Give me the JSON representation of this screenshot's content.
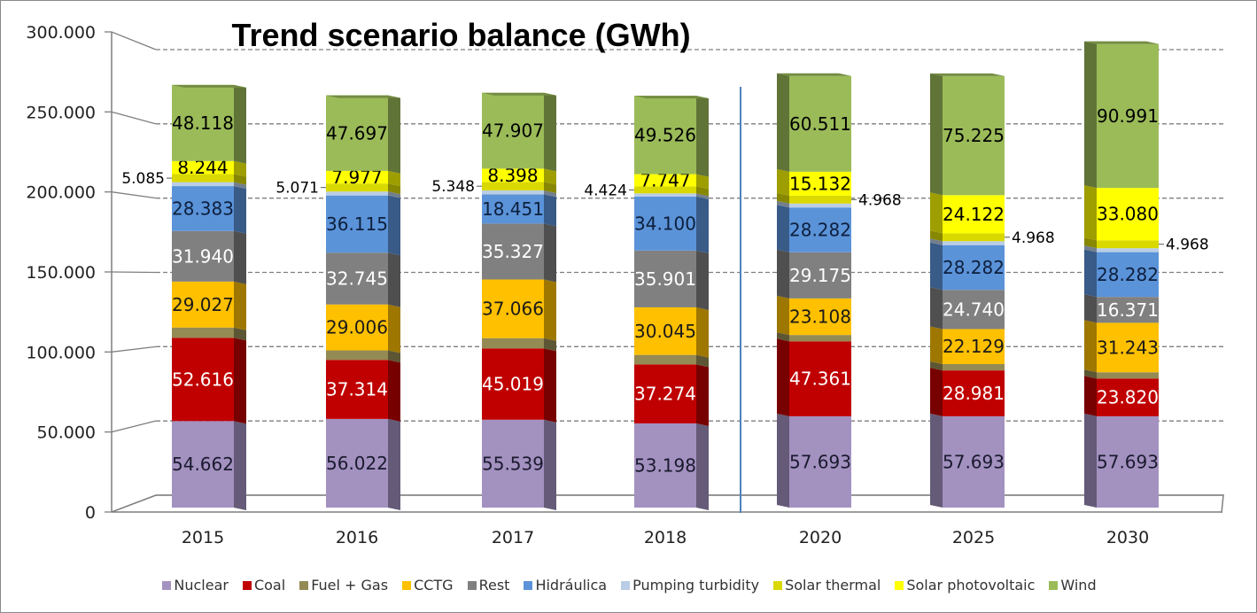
{
  "chart_data": {
    "type": "bar",
    "stacked": true,
    "three_d": true,
    "title": "Trend scenario balance (GWh)",
    "categories": [
      "2015",
      "2016",
      "2017",
      "2018",
      "2020",
      "2025",
      "2030"
    ],
    "ylim": [
      0,
      300000
    ],
    "yticks": [
      "0",
      "50.000",
      "100.000",
      "150.000",
      "200.000",
      "250.000",
      "300.000"
    ],
    "ytick_values": [
      0,
      50000,
      100000,
      150000,
      200000,
      250000,
      300000
    ],
    "grid": true,
    "legend": "bottom",
    "separator_after_category": "2018",
    "series": [
      {
        "name": "Nuclear",
        "color": "#a391c0",
        "label_color": "#1a1a2e",
        "values": [
          54662,
          56022,
          55539,
          53198,
          57693,
          57693,
          57693
        ],
        "labels": [
          "54.662",
          "56.022",
          "55.539",
          "53.198",
          "57.693",
          "57.693",
          "57.693"
        ]
      },
      {
        "name": "Coal",
        "color": "#c00000",
        "label_color": "#ffffff",
        "values": [
          52616,
          37314,
          45019,
          37274,
          47361,
          28981,
          23820
        ],
        "labels": [
          "52.616",
          "37.314",
          "45.019",
          "37.274",
          "47.361",
          "28.981",
          "23.820"
        ]
      },
      {
        "name": "Fuel + Gas",
        "color": "#948a54",
        "label_color": "#000000",
        "values": [
          6500,
          6000,
          6500,
          6000,
          4000,
          4000,
          4000
        ],
        "labels": [
          "",
          "",
          "",
          "",
          "",
          "",
          ""
        ]
      },
      {
        "name": "CCTG",
        "color": "#ffc000",
        "label_color": "#1a1a1a",
        "values": [
          29027,
          29006,
          37066,
          30045,
          23108,
          22129,
          31243
        ],
        "labels": [
          "29.027",
          "29.006",
          "37.066",
          "30.045",
          "23.108",
          "22.129",
          "31.243"
        ]
      },
      {
        "name": "Rest",
        "color": "#808080",
        "label_color": "#ffffff",
        "values": [
          31940,
          32745,
          35327,
          35901,
          29175,
          24740,
          16371
        ],
        "labels": [
          "31.940",
          "32.745",
          "35.327",
          "35.901",
          "29.175",
          "24.740",
          "16.371"
        ]
      },
      {
        "name": "Hidráulica",
        "color": "#5b93d9",
        "label_color": "#0d1f3c",
        "values": [
          28383,
          36115,
          18451,
          34100,
          28282,
          28282,
          28282
        ],
        "labels": [
          "28.383",
          "36.115",
          "18.451",
          "34.100",
          "28.282",
          "28.282",
          "28.282"
        ]
      },
      {
        "name": "Pumping turbidity",
        "color": "#b9cde5",
        "label_color": "#000000",
        "values": [
          2500,
          2500,
          2500,
          2000,
          2500,
          2500,
          2500
        ],
        "labels": [
          "",
          "",
          "",
          "",
          "",
          "",
          ""
        ]
      },
      {
        "name": "Solar thermal",
        "color": "#d9d900",
        "label_color": "#000000",
        "values": [
          5085,
          5071,
          5348,
          4424,
          4968,
          4968,
          4968
        ],
        "labels": [
          "5.085",
          "5.071",
          "5.348",
          "4.424",
          "4.968",
          "4.968",
          "4.968"
        ]
      },
      {
        "name": "Solar photovoltaic",
        "color": "#ffff00",
        "label_color": "#000000",
        "values": [
          8244,
          7977,
          8398,
          7747,
          15132,
          24122,
          33080
        ],
        "labels": [
          "8.244",
          "7.977",
          "8.398",
          "7.747",
          "15.132",
          "24.122",
          "33.080"
        ]
      },
      {
        "name": "Wind",
        "color": "#9bbb59",
        "label_color": "#000000",
        "values": [
          48118,
          47697,
          47907,
          49526,
          60511,
          75225,
          90991
        ],
        "labels": [
          "48.118",
          "47.697",
          "47.907",
          "49.526",
          "60.511",
          "75.225",
          "90.991"
        ]
      }
    ]
  }
}
